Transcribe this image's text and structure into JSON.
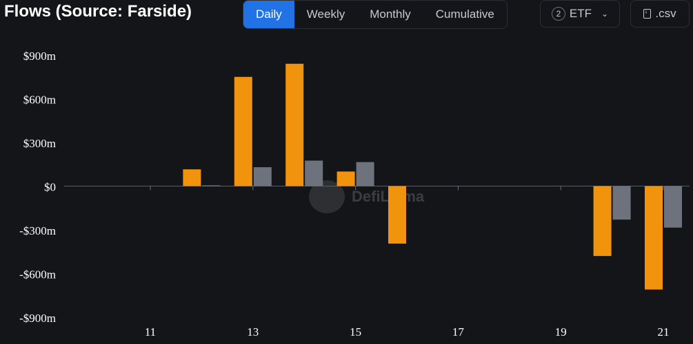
{
  "header": {
    "title": "Flows (Source: Farside)",
    "tabs": [
      "Daily",
      "Weekly",
      "Monthly",
      "Cumulative"
    ],
    "active_tab": "Daily",
    "etf_count": "2",
    "etf_label": "ETF",
    "csv_label": ".csv"
  },
  "watermark": "DefiLlama",
  "colors": {
    "series_1": "#f2930d",
    "series_2": "#6e727d",
    "accent": "#2172e5"
  },
  "chart_data": {
    "type": "bar",
    "x": [
      10.5,
      11,
      11.5,
      12,
      12.5,
      13,
      13.5,
      14,
      14.5,
      15,
      15.5,
      16,
      16.5,
      17,
      17.5,
      18,
      18.5,
      19,
      19.5,
      20,
      20.5,
      21
    ],
    "x_ticks": [
      "11",
      "13",
      "15",
      "17",
      "19",
      "21"
    ],
    "series": [
      {
        "values": [
          0,
          0,
          0,
          115,
          0,
          750,
          0,
          840,
          0,
          100,
          0,
          -395,
          0,
          0,
          0,
          0,
          0,
          0,
          0,
          -480,
          0,
          -710
        ]
      },
      {
        "values": [
          0,
          0,
          0,
          5,
          0,
          130,
          0,
          175,
          0,
          165,
          0,
          0,
          0,
          0,
          0,
          0,
          0,
          0,
          0,
          -230,
          0,
          -285
        ]
      }
    ],
    "y_ticks": [
      "$900m",
      "$600m",
      "$300m",
      "$0",
      "-$300m",
      "-$600m",
      "-$900m"
    ],
    "ylim": [
      -900,
      900
    ],
    "grid": false,
    "legend": "none"
  }
}
